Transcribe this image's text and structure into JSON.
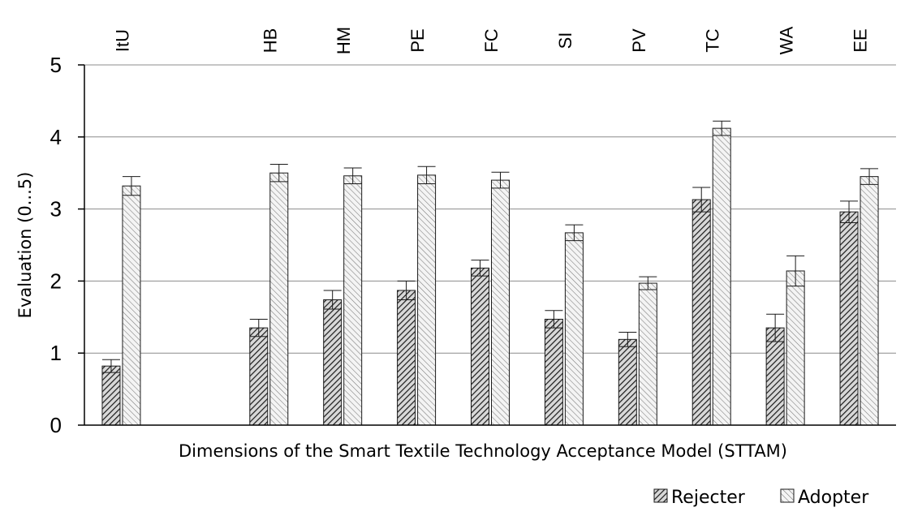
{
  "chart_data": {
    "type": "bar",
    "categories": [
      "ItU",
      "",
      "HB",
      "HM",
      "PE",
      "FC",
      "SI",
      "PV",
      "TC",
      "WA",
      "EE"
    ],
    "series": [
      {
        "name": "Rejecter",
        "values": [
          0.82,
          null,
          1.35,
          1.74,
          1.87,
          2.18,
          1.47,
          1.19,
          3.13,
          1.35,
          2.96
        ],
        "errors": [
          0.09,
          null,
          0.12,
          0.13,
          0.13,
          0.11,
          0.12,
          0.1,
          0.17,
          0.19,
          0.15
        ]
      },
      {
        "name": "Adopter",
        "values": [
          3.32,
          null,
          3.5,
          3.46,
          3.47,
          3.4,
          2.67,
          1.97,
          4.12,
          2.14,
          3.45
        ],
        "errors": [
          0.13,
          null,
          0.12,
          0.11,
          0.12,
          0.11,
          0.11,
          0.09,
          0.1,
          0.21,
          0.11
        ]
      }
    ],
    "xlabel": "Dimensions of the Smart Textile Technology Acceptance Model (STTAM)",
    "ylabel": "Evaluation (0...5)",
    "ylim": [
      0,
      5
    ],
    "yticks": [
      "0",
      "1",
      "2",
      "3",
      "4",
      "5"
    ],
    "grid": true,
    "legend_position": "bottom-right",
    "category_labels_position": "top"
  }
}
